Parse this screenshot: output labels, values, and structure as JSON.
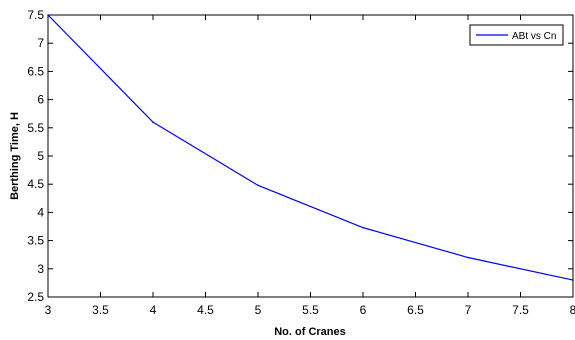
{
  "chart_data": {
    "type": "line",
    "title": "",
    "xlabel": "No. of Cranes",
    "ylabel": "Berthing Time, H",
    "xlim": [
      3,
      8
    ],
    "ylim": [
      2.5,
      7.5
    ],
    "x_ticks": [
      "3",
      "3.5",
      "4",
      "4.5",
      "5",
      "5.5",
      "6",
      "6.5",
      "7",
      "7.5",
      "8"
    ],
    "y_ticks": [
      "2.5",
      "3",
      "3.5",
      "4",
      "4.5",
      "5",
      "5.5",
      "6",
      "6.5",
      "7",
      "7.5"
    ],
    "grid": false,
    "legend_position": "top-right",
    "series": [
      {
        "name": "ABt vs Cn",
        "color": "#0000ff",
        "x": [
          3,
          4,
          5,
          6,
          7,
          8
        ],
        "y": [
          7.5,
          5.6,
          4.48,
          3.73,
          3.2,
          2.8
        ]
      }
    ]
  }
}
